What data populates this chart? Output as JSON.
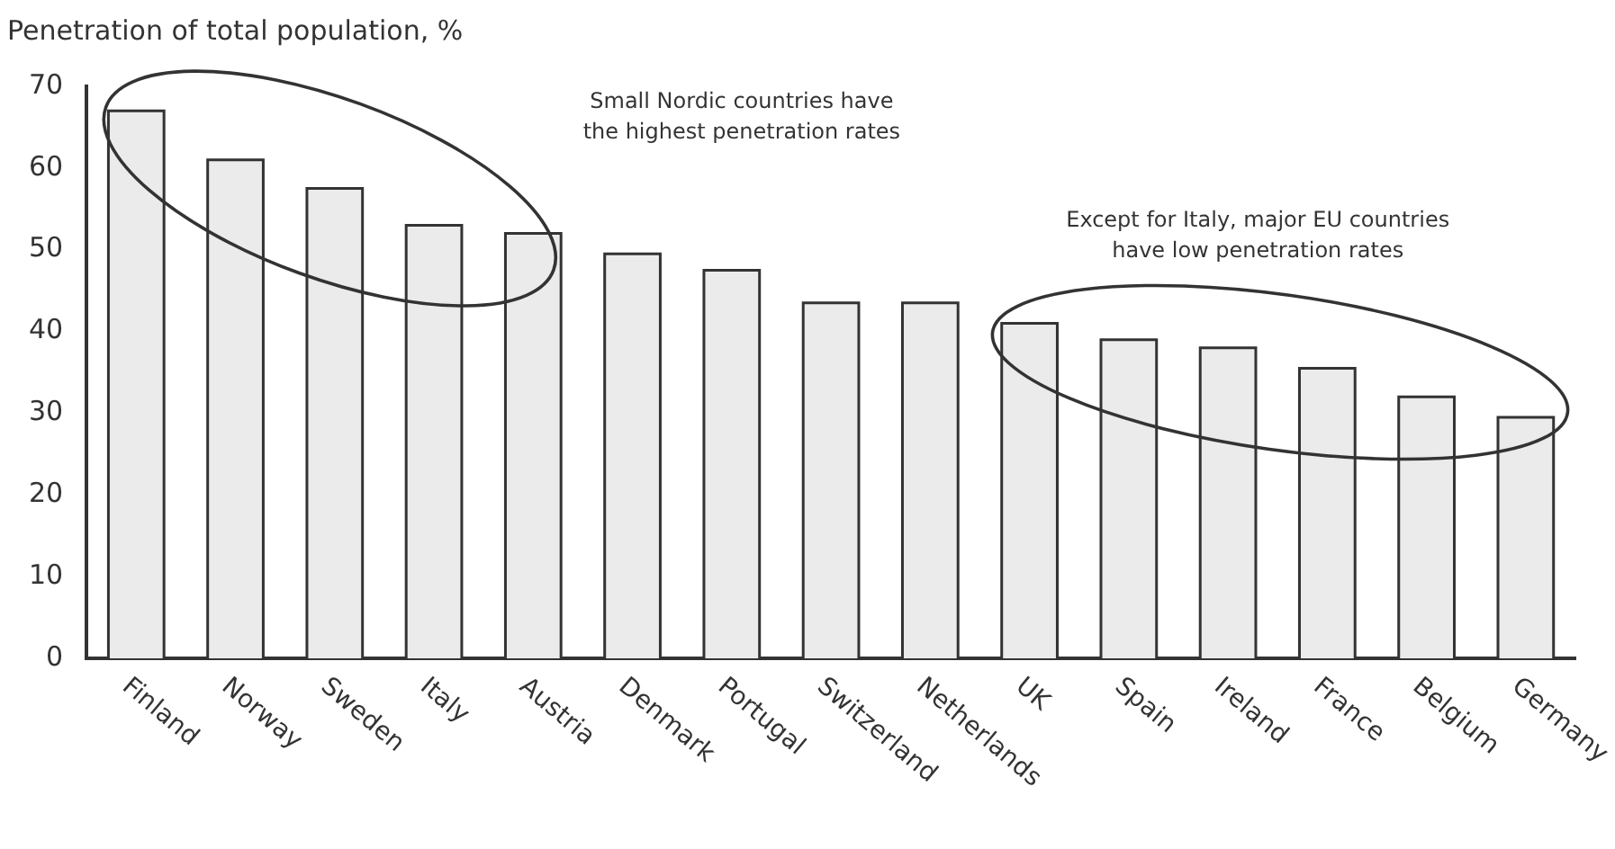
{
  "chart_data": {
    "type": "bar",
    "ylabel": "Penetration of total population, %",
    "categories": [
      "Finland",
      "Norway",
      "Sweden",
      "Italy",
      "Austria",
      "Denmark",
      "Portugal",
      "Switzerland",
      "Netherlands",
      "UK",
      "Spain",
      "Ireland",
      "France",
      "Belgium",
      "Germany"
    ],
    "values": [
      67,
      61,
      57.5,
      53,
      52,
      49.5,
      47.5,
      43.5,
      43.5,
      41,
      39,
      38,
      35.5,
      32,
      29.5
    ],
    "color": "#ebebeb",
    "ylim": [
      0,
      70
    ],
    "yticks": [
      0,
      10,
      20,
      30,
      40,
      50,
      60,
      70
    ],
    "grid": false,
    "annotations": [
      "Small Nordic countries have the highest penetration rates",
      "Except for Italy, major EU countries have low penetration rates"
    ]
  }
}
